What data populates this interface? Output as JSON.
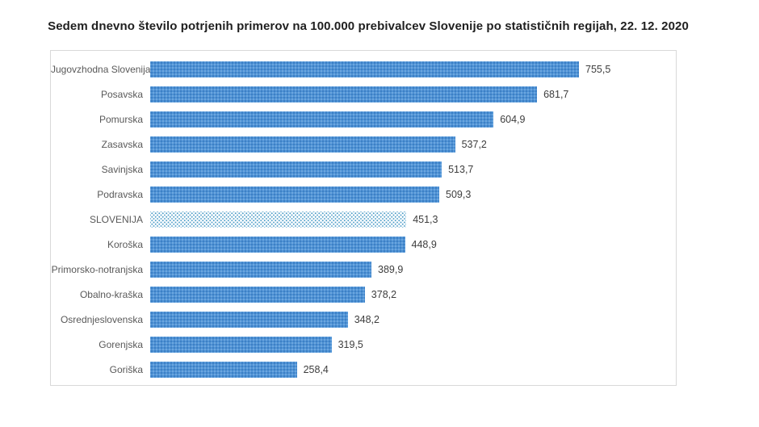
{
  "chart_data": {
    "type": "bar",
    "orientation": "horizontal",
    "title": "Sedem dnevno število potrjenih primerov na 100.000 prebivalcev Slovenije po statističnih regijah, 22. 12. 2020",
    "categories": [
      "Jugovzhodna Slovenija",
      "Posavska",
      "Pomurska",
      "Zasavska",
      "Savinjska",
      "Podravska",
      "SLOVENIJA",
      "Koroška",
      "Primorsko-notranjska",
      "Obalno-kraška",
      "Osrednjeslovenska",
      "Gorenjska",
      "Goriška"
    ],
    "values": [
      755.5,
      681.7,
      604.9,
      537.2,
      513.7,
      509.3,
      451.3,
      448.9,
      389.9,
      378.2,
      348.2,
      319.5,
      258.4
    ],
    "value_labels": [
      "755,5",
      "681,7",
      "604,9",
      "537,2",
      "513,7",
      "509,3",
      "451,3",
      "448,9",
      "389,9",
      "378,2",
      "348,2",
      "319,5",
      "258,4"
    ],
    "highlighted_category": "SLOVENIJA",
    "xlabel": "",
    "ylabel": "",
    "xlim": [
      0,
      800
    ],
    "grid": false,
    "legend": false,
    "colors": {
      "bar_fill": "#4f93d6",
      "bar_pattern_dark": "#2e6db4",
      "bar_pattern_light": "#8ab9e6",
      "highlight_fill": "#ffffff",
      "highlight_dot": "#4d9cc7",
      "frame_border": "#d9d9d9",
      "category_text": "#595959",
      "value_text": "#3d3d3d",
      "title_text": "#1f1f1f"
    }
  }
}
